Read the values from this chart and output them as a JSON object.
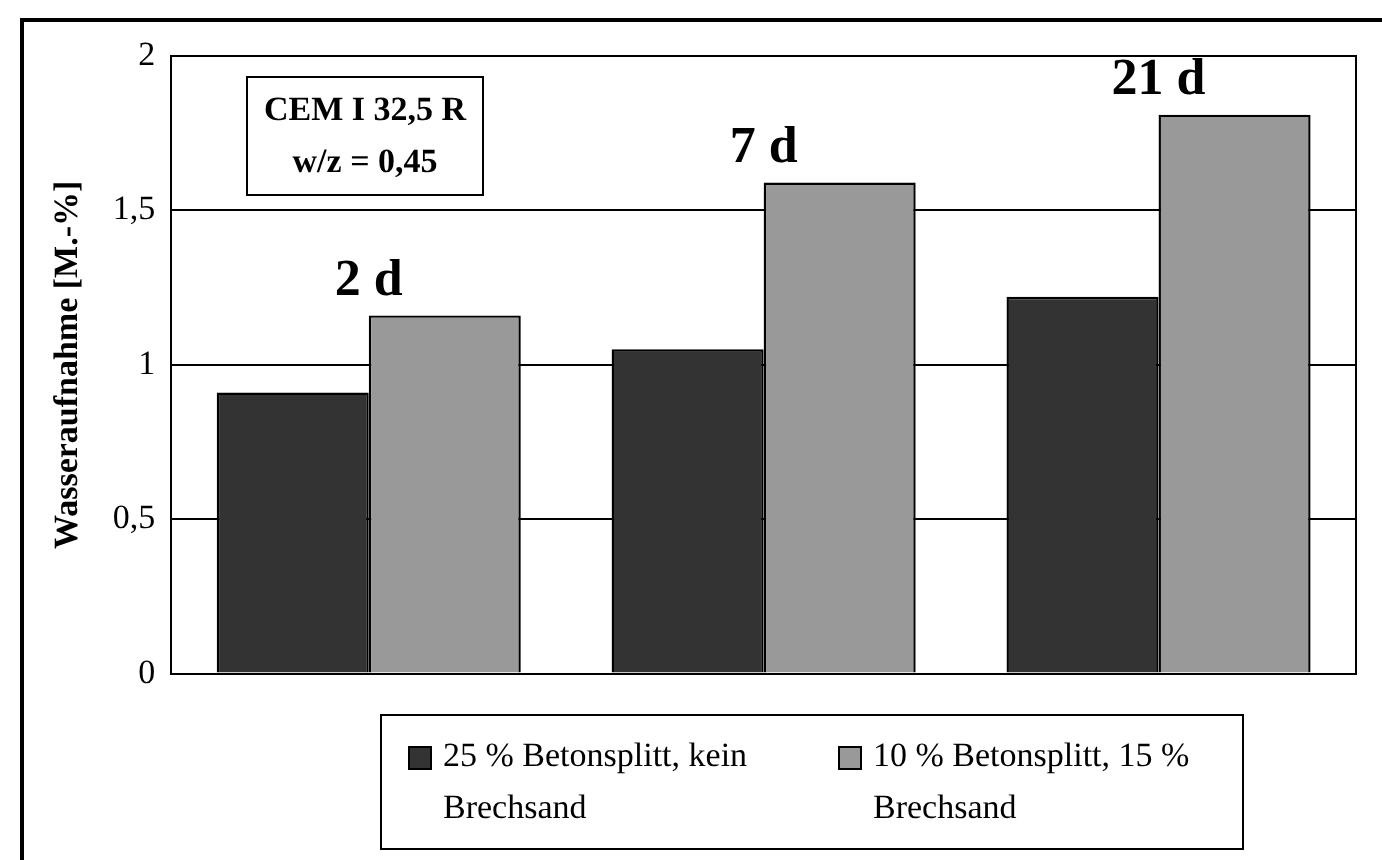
{
  "chart_data": {
    "type": "bar",
    "ylabel": "Wasseraufnahme [M.-%]",
    "categories": [
      "2 d",
      "7 d",
      "21 d"
    ],
    "series": [
      {
        "name": "25 % Betonsplitt, kein Brechsand",
        "color": "#333333",
        "values": [
          0.91,
          1.05,
          1.22
        ]
      },
      {
        "name": "10 % Betonsplitt, 15 % Brechsand",
        "color": "#999999",
        "values": [
          1.16,
          1.59,
          1.81
        ]
      }
    ],
    "ylim": [
      0,
      2
    ],
    "yticks": [
      0,
      {
        "value": 0.5,
        "label": "0,5"
      },
      1,
      {
        "value": 1.5,
        "label": "1,5"
      },
      2
    ],
    "grid": "y",
    "legend": "bottom",
    "annotations": [
      "CEM I 32,5 R",
      "w/z = 0,45"
    ]
  }
}
